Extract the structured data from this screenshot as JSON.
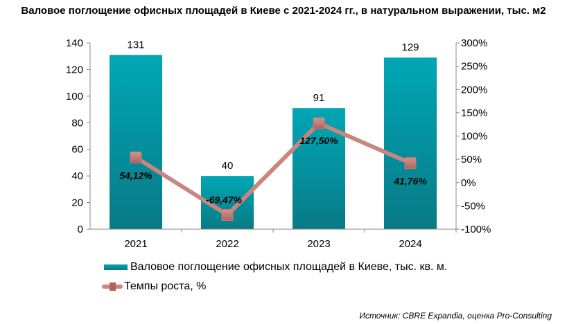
{
  "chart_data": {
    "type": "bar+line",
    "title": "Валовое поглощение офисных площадей в Киеве с 2021-2024 гг., в натуральном выражении, тыс. м2",
    "categories": [
      "2021",
      "2022",
      "2023",
      "2024"
    ],
    "series": [
      {
        "name": "Валовое поглощение офисных площадей в Киеве, тыс. кв. м.",
        "type": "bar",
        "axis": "left",
        "values": [
          131,
          40,
          91,
          129
        ],
        "labels": [
          "131",
          "40",
          "91",
          "129"
        ],
        "color": "#0e9aa7"
      },
      {
        "name": "Темпы роста, %",
        "type": "line",
        "axis": "right",
        "values": [
          54.12,
          -69.47,
          127.5,
          41.76
        ],
        "labels": [
          "54,12%",
          "-69,47%",
          "127,50%",
          "41,76%"
        ],
        "color": "#c9857f"
      }
    ],
    "left_axis": {
      "ylim": [
        0,
        140
      ],
      "ticks": [
        "0",
        "20",
        "40",
        "60",
        "80",
        "100",
        "120",
        "140"
      ]
    },
    "right_axis": {
      "ylim": [
        -100,
        300
      ],
      "ticks": [
        "-100%",
        "-50%",
        "0%",
        "50%",
        "100%",
        "150%",
        "200%",
        "250%",
        "300%"
      ]
    },
    "legend_position": "bottom",
    "grid": false
  },
  "source": "Источник: CBRE Expandia, оценка Pro-Consulting"
}
